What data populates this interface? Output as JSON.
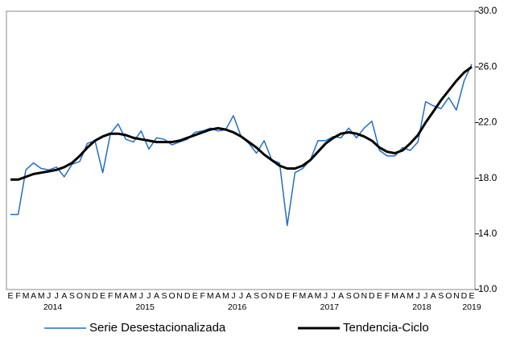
{
  "chart_data": {
    "type": "line",
    "categories": [
      "E",
      "F",
      "M",
      "A",
      "M",
      "J",
      "J",
      "A",
      "S",
      "O",
      "N",
      "D",
      "E",
      "F",
      "M",
      "A",
      "M",
      "J",
      "J",
      "A",
      "S",
      "O",
      "N",
      "D",
      "E",
      "F",
      "M",
      "A",
      "M",
      "J",
      "J",
      "A",
      "S",
      "O",
      "N",
      "D",
      "E",
      "F",
      "M",
      "A",
      "M",
      "J",
      "J",
      "A",
      "S",
      "O",
      "N",
      "D",
      "E",
      "F",
      "M",
      "A",
      "M",
      "J",
      "J",
      "A",
      "S",
      "O",
      "N",
      "D",
      "E"
    ],
    "year_labels": [
      "2014",
      "2015",
      "2016",
      "2017",
      "2018",
      "2019"
    ],
    "series": [
      {
        "name": "Serie Desestacionalizada",
        "color": "#1f6fc5",
        "width": 1.5,
        "values": [
          15.4,
          15.4,
          18.6,
          19.1,
          18.7,
          18.6,
          18.8,
          18.1,
          19.0,
          19.2,
          20.5,
          20.7,
          18.4,
          21.2,
          21.9,
          20.8,
          20.6,
          21.4,
          20.1,
          20.9,
          20.8,
          20.4,
          20.6,
          20.8,
          21.3,
          21.4,
          21.6,
          21.4,
          21.5,
          22.5,
          21.0,
          20.5,
          19.8,
          20.7,
          19.3,
          19.1,
          14.6,
          18.4,
          18.7,
          19.3,
          20.7,
          20.7,
          21.0,
          20.9,
          21.6,
          20.9,
          21.6,
          22.1,
          20.0,
          19.6,
          19.6,
          20.2,
          20.0,
          20.6,
          23.5,
          23.2,
          23.0,
          23.8,
          22.9,
          25.0,
          26.2
        ]
      },
      {
        "name": "Tendencia-Ciclo",
        "color": "#000000",
        "width": 3,
        "values": [
          17.9,
          17.9,
          18.1,
          18.3,
          18.4,
          18.5,
          18.6,
          18.8,
          19.1,
          19.6,
          20.2,
          20.7,
          21.0,
          21.2,
          21.2,
          21.1,
          20.9,
          20.8,
          20.7,
          20.6,
          20.6,
          20.6,
          20.7,
          20.9,
          21.1,
          21.3,
          21.5,
          21.6,
          21.5,
          21.3,
          21.0,
          20.6,
          20.2,
          19.7,
          19.3,
          18.9,
          18.7,
          18.7,
          18.9,
          19.3,
          19.9,
          20.5,
          20.9,
          21.2,
          21.3,
          21.2,
          21.0,
          20.7,
          20.2,
          19.9,
          19.8,
          20.0,
          20.5,
          21.1,
          22.0,
          22.8,
          23.6,
          24.3,
          25.0,
          25.6,
          26.0
        ]
      }
    ],
    "ylim": [
      10,
      30
    ],
    "yticks": [
      {
        "value": 10,
        "label": "10.0"
      },
      {
        "value": 14,
        "label": "14.0"
      },
      {
        "value": 18,
        "label": "18.0"
      },
      {
        "value": 22,
        "label": "22.0"
      },
      {
        "value": 26,
        "label": "26.0"
      },
      {
        "value": 30,
        "label": "30.0"
      }
    ],
    "y_axis_side": "right",
    "grid": false,
    "legend": "bottom"
  }
}
